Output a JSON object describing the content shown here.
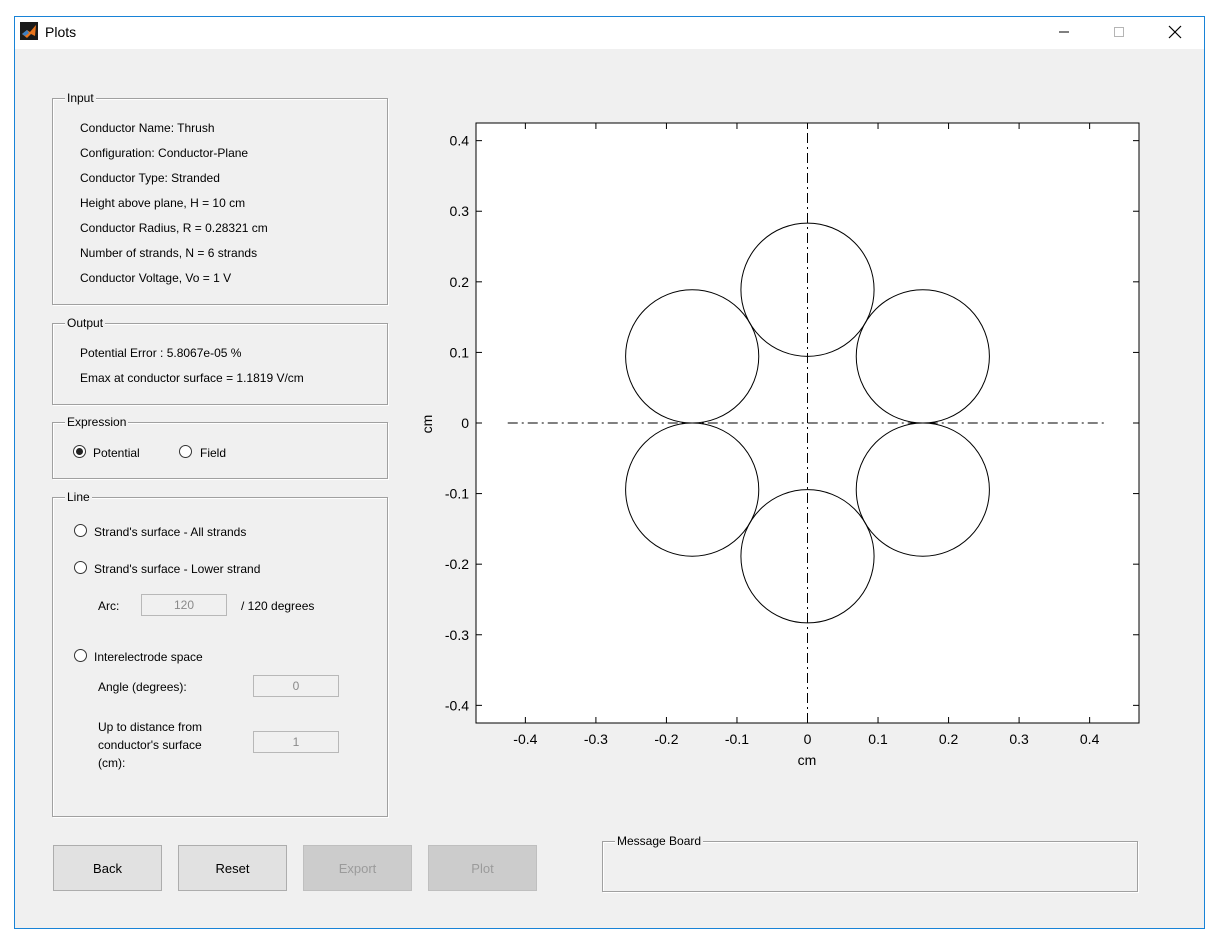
{
  "window": {
    "title": "Plots"
  },
  "input_panel": {
    "title": "Input",
    "lines": [
      "Conductor Name: Thrush",
      "Configuration: Conductor-Plane",
      "Conductor Type: Stranded",
      "Height above plane, H = 10 cm",
      "Conductor Radius, R = 0.28321 cm",
      "Number of strands, N = 6 strands",
      "Conductor Voltage, Vo = 1 V"
    ]
  },
  "output_panel": {
    "title": "Output",
    "lines": [
      "Potential Error : 5.8067e-05 %",
      "Emax at conductor surface = 1.1819 V/cm"
    ]
  },
  "expression_panel": {
    "title": "Expression",
    "options": [
      {
        "label": "Potential",
        "selected": true
      },
      {
        "label": "Field",
        "selected": false
      }
    ]
  },
  "line_panel": {
    "title": "Line",
    "option_all": "Strand's surface - All strands",
    "option_lower": "Strand's surface - Lower strand",
    "arc_label": "Arc:",
    "arc_value": "120",
    "arc_suffix": "/ 120 degrees",
    "option_inter": "Interelectrode space",
    "angle_label": "Angle (degrees):",
    "angle_value": "0",
    "distance_label_1": "Up to distance from",
    "distance_label_2": "conductor's surface",
    "distance_label_3": "(cm):",
    "distance_value": "1"
  },
  "buttons": {
    "back": "Back",
    "reset": "Reset",
    "export": "Export",
    "plot": "Plot"
  },
  "message_board": {
    "title": "Message Board",
    "text": ""
  },
  "chart_data": {
    "type": "scatter",
    "xlabel": "cm",
    "ylabel": "cm",
    "xlim": [
      -0.47,
      0.47
    ],
    "ylim": [
      -0.425,
      0.425
    ],
    "xticks": [
      -0.4,
      -0.3,
      -0.2,
      -0.1,
      0,
      0.1,
      0.2,
      0.3,
      0.4
    ],
    "yticks": [
      0.4,
      0.3,
      0.2,
      0.1,
      0,
      -0.1,
      -0.2,
      -0.3,
      -0.4
    ],
    "grid": false,
    "strand_radius": 0.0944,
    "strands": [
      {
        "x": 0,
        "y": 0.1888
      },
      {
        "x": 0.1635,
        "y": 0.0944
      },
      {
        "x": 0.1635,
        "y": -0.0944
      },
      {
        "x": 0,
        "y": -0.1888
      },
      {
        "x": -0.1635,
        "y": -0.0944
      },
      {
        "x": -0.1635,
        "y": 0.0944
      }
    ],
    "axis_lines": {
      "horizontal": {
        "x": [
          -0.425,
          0.425
        ],
        "y": 0
      },
      "vertical": {
        "x": 0,
        "y": [
          -0.425,
          0.425
        ]
      },
      "style": "dash-dot"
    }
  }
}
